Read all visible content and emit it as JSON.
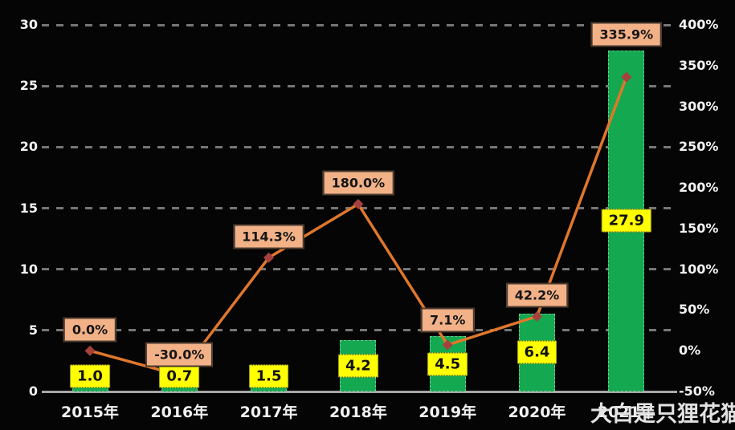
{
  "chart_data": {
    "type": "bar",
    "subtype": "combo-bar-line",
    "title": "",
    "categories": [
      "2015年",
      "2016年",
      "2017年",
      "2018年",
      "2019年",
      "2020年",
      "2021年"
    ],
    "series": [
      {
        "name": "bar-values",
        "type": "bar",
        "axis": "left",
        "values": [
          1.0,
          0.7,
          1.5,
          4.2,
          4.5,
          6.4,
          27.9
        ],
        "labels": [
          "1.0",
          "0.7",
          "1.5",
          "4.2",
          "4.5",
          "6.4",
          "27.9"
        ]
      },
      {
        "name": "growth-rate-line",
        "type": "line",
        "axis": "right",
        "values": [
          0.0,
          -30.0,
          114.3,
          180.0,
          7.1,
          42.2,
          335.9
        ],
        "labels": [
          "0.0%",
          "-30.0%",
          "114.3%",
          "180.0%",
          "7.1%",
          "42.2%",
          "335.9%"
        ]
      }
    ],
    "left_axis": {
      "min": 0,
      "max": 30,
      "step": 5,
      "ticks": [
        "0",
        "5",
        "10",
        "15",
        "20",
        "25",
        "30"
      ]
    },
    "right_axis": {
      "min": -50,
      "max": 400,
      "step": 50,
      "ticks": [
        "-50%",
        "0%",
        "50%",
        "100%",
        "150%",
        "200%",
        "250%",
        "300%",
        "350%",
        "400%"
      ]
    },
    "grid": "horizontal-dashed",
    "legend_position": "none"
  },
  "watermark": {
    "text": "大白是只狸花猫"
  },
  "colors": {
    "background": "#050505",
    "bar_fill": "#14a850",
    "bar_label_bg": "#ffff00",
    "line": "#e0772b",
    "marker": "#a6403c",
    "line_label_bg": "#f2b187",
    "line_label_border": "#4a3a2e",
    "grid": "#8a8a8a",
    "axis_text": "#f2f2f2",
    "baseline": "#a8a8a8"
  }
}
